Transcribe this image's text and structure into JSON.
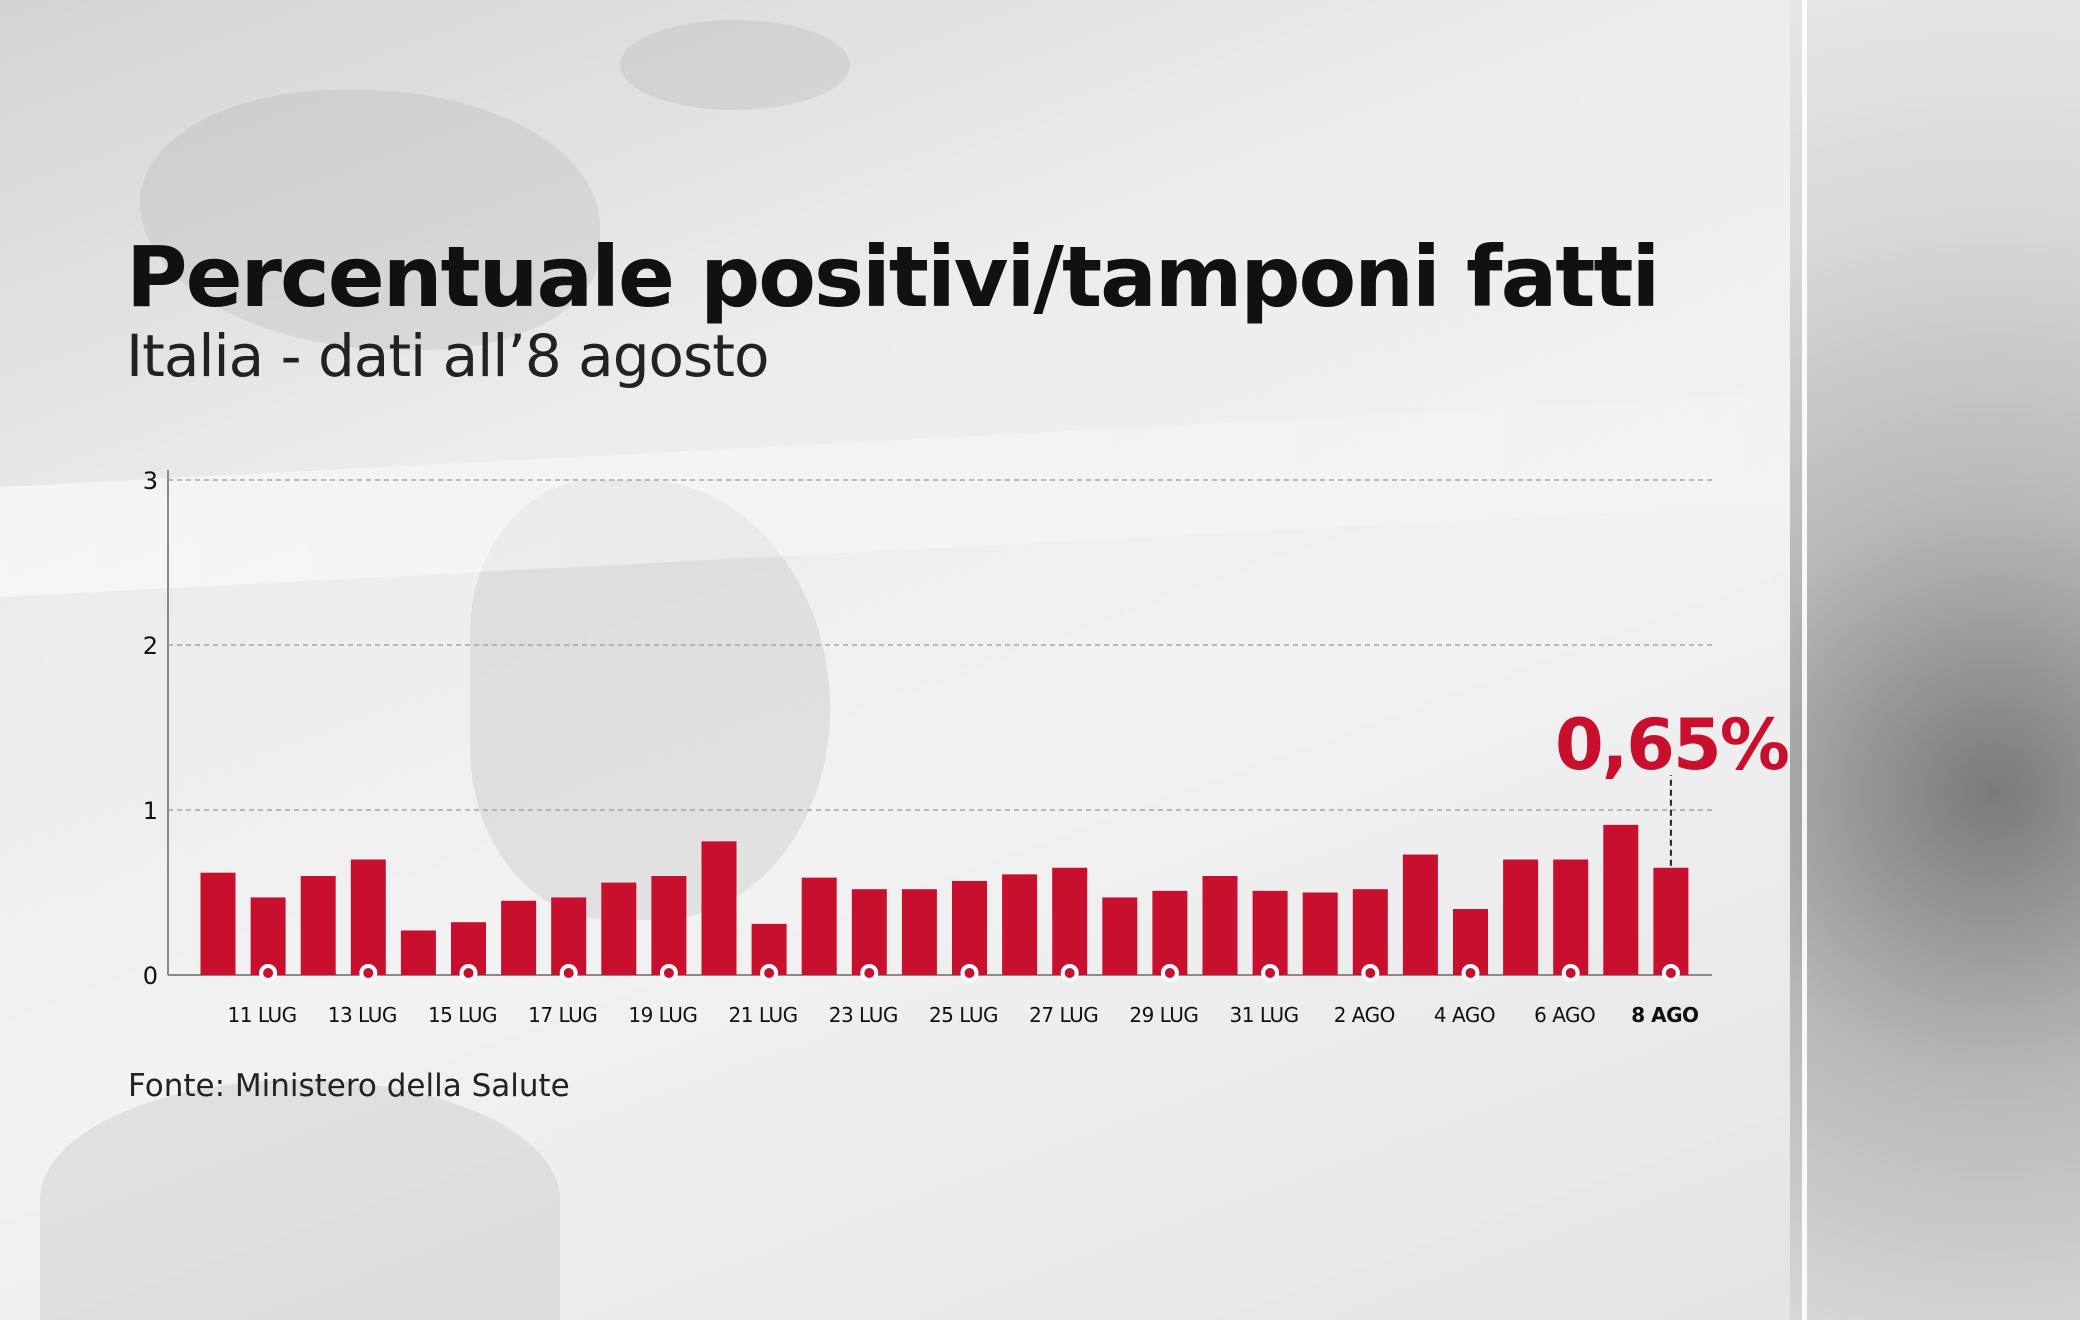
{
  "header": {
    "title": "Percentuale positivi/tamponi fatti",
    "subtitle": "Italia - dati all’8 agosto"
  },
  "footer": {
    "source": "Fonte: Ministero della Salute"
  },
  "annotation": {
    "label": "0,65%"
  },
  "colors": {
    "bar": "#c8102e",
    "highlight_text": "#c8102e",
    "axis": "#8a8a8a",
    "grid": "#a5a5a5"
  },
  "chart_data": {
    "type": "bar",
    "title": "Percentuale positivi/tamponi fatti",
    "subtitle": "Italia - dati all’8 agosto",
    "xlabel": "",
    "ylabel": "",
    "ylim": [
      0,
      3
    ],
    "yticks": [
      0,
      1,
      2,
      3
    ],
    "grid": true,
    "categories": [
      "10 LUG",
      "11 LUG",
      "12 LUG",
      "13 LUG",
      "14 LUG",
      "15 LUG",
      "16 LUG",
      "17 LUG",
      "18 LUG",
      "19 LUG",
      "20 LUG",
      "21 LUG",
      "22 LUG",
      "23 LUG",
      "24 LUG",
      "25 LUG",
      "26 LUG",
      "27 LUG",
      "28 LUG",
      "29 LUG",
      "30 LUG",
      "31 LUG",
      "1 AGO",
      "2 AGO",
      "3 AGO",
      "4 AGO",
      "5 AGO",
      "6 AGO",
      "7 AGO",
      "8 AGO"
    ],
    "tick_labels": [
      "11 LUG",
      "13 LUG",
      "15 LUG",
      "17 LUG",
      "19 LUG",
      "21 LUG",
      "23 LUG",
      "25 LUG",
      "27 LUG",
      "29 LUG",
      "31 LUG",
      "2 AGO",
      "4 AGO",
      "6 AGO",
      "8 AGO"
    ],
    "values": [
      0.62,
      0.47,
      0.6,
      0.7,
      0.27,
      0.32,
      0.45,
      0.47,
      0.56,
      0.6,
      0.81,
      0.31,
      0.59,
      0.52,
      0.52,
      0.57,
      0.61,
      0.65,
      0.47,
      0.51,
      0.6,
      0.51,
      0.5,
      0.52,
      0.73,
      0.4,
      0.7,
      0.7,
      0.91,
      0.65
    ],
    "annotations": [
      {
        "category": "8 AGO",
        "text": "0,65%"
      }
    ]
  }
}
